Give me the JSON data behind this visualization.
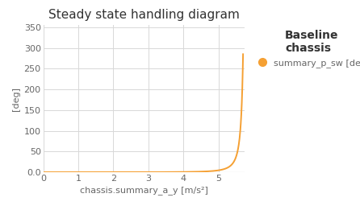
{
  "title": "Steady state handling diagram",
  "xlabel": "chassis.summary_a_y [m/s²]",
  "ylabel": "[deg]",
  "legend_title": "Baseline\nchassis",
  "legend_label": "summary_p_sw [deg]",
  "line_color": "#F5A033",
  "legend_dot_color": "#F5A033",
  "background_color": "#ffffff",
  "plot_bg_color": "#ffffff",
  "grid_color": "#d8d8d8",
  "xlim": [
    0,
    5.75
  ],
  "ylim": [
    0.0,
    355
  ],
  "xticks": [
    0,
    1,
    2,
    3,
    4,
    5
  ],
  "yticks": [
    0.0,
    50,
    100,
    150,
    200,
    250,
    300,
    350
  ],
  "title_fontsize": 11,
  "axis_label_fontsize": 8,
  "tick_fontsize": 8,
  "legend_title_fontsize": 9,
  "legend_label_fontsize": 8,
  "x_asymptote": 5.82,
  "curve_end_x": 5.7
}
